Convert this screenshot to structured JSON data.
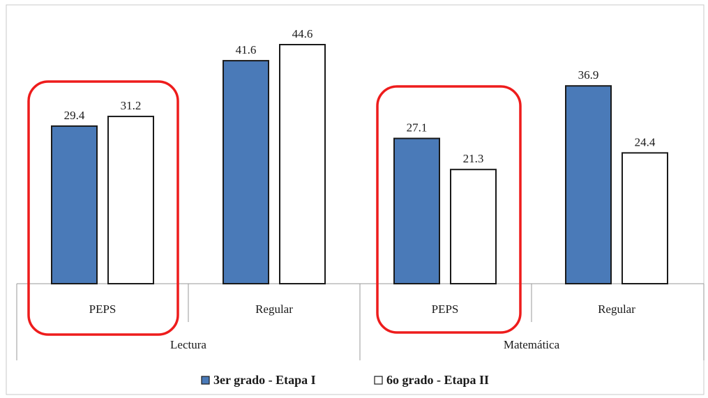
{
  "chart_data": {
    "type": "bar",
    "groups": [
      {
        "name": "Lectura",
        "categories": [
          "PEPS",
          "Regular"
        ]
      },
      {
        "name": "Matemática",
        "categories": [
          "PEPS",
          "Regular"
        ]
      }
    ],
    "series": [
      {
        "name": "3er grado - Etapa I",
        "values": [
          29.4,
          41.6,
          27.1,
          36.9
        ],
        "color": "#4a7ab8"
      },
      {
        "name": "6o grado - Etapa II",
        "values": [
          31.2,
          44.6,
          21.3,
          24.4
        ],
        "color": "#ffffff"
      }
    ],
    "highlighted_categories": [
      "Lectura / PEPS",
      "Matemática / PEPS"
    ],
    "highlight_color": "#ee1c1c",
    "ylim": [
      0,
      50
    ],
    "grid": false,
    "legend_position": "bottom-center"
  }
}
